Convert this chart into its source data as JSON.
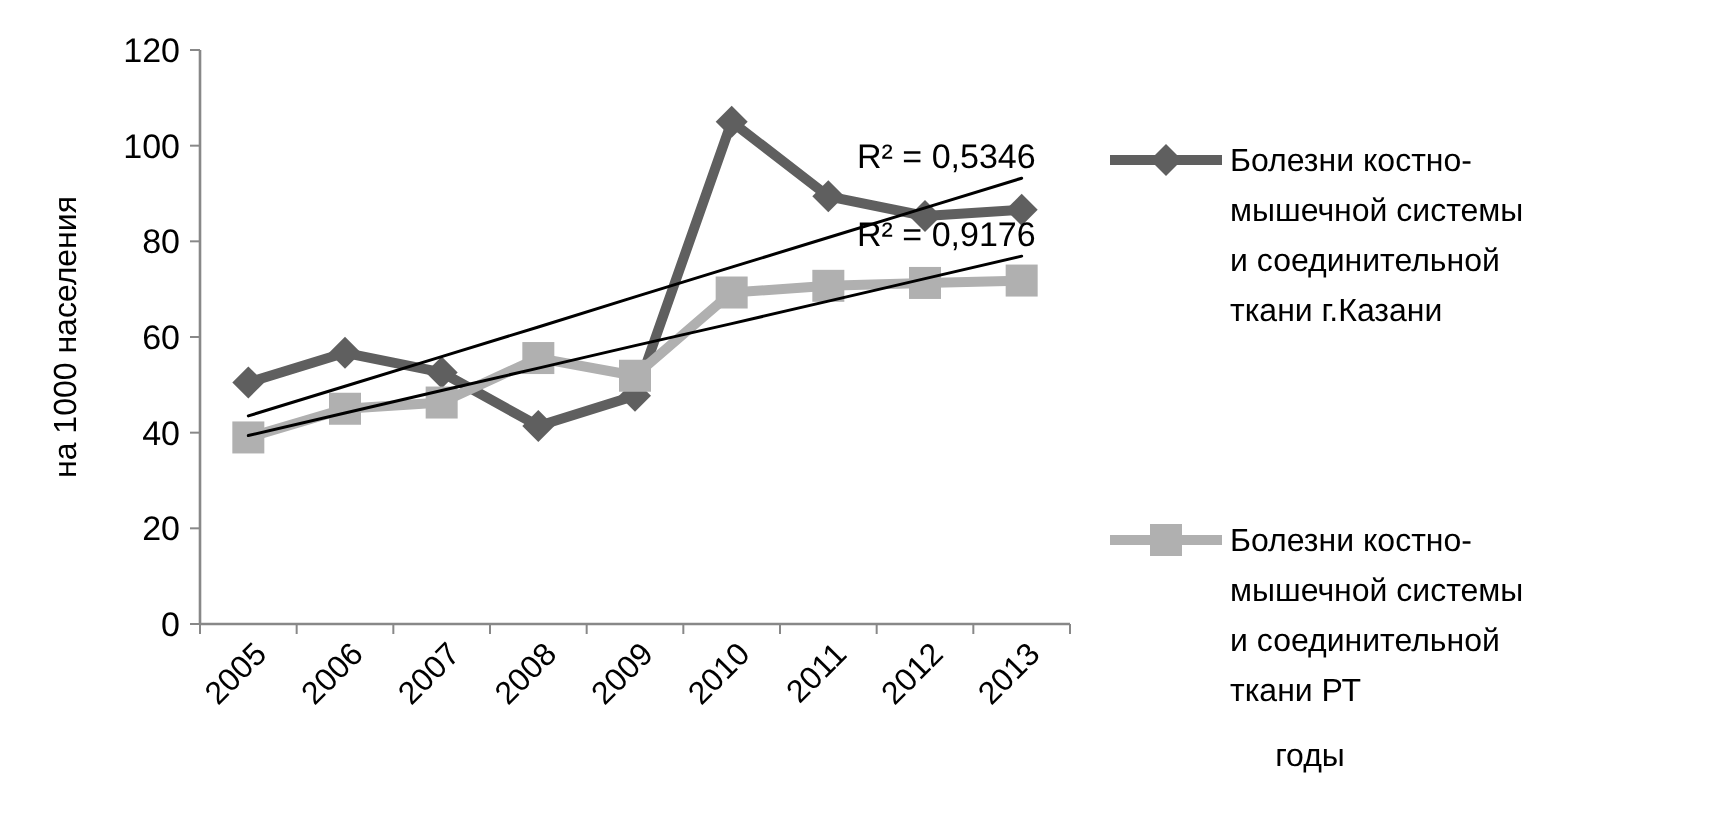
{
  "chart_data": {
    "type": "line",
    "ylabel": "на 1000 населения",
    "categories": [
      "2005",
      "2006",
      "2007",
      "2008",
      "2009",
      "2010",
      "2011",
      "2012",
      "2013"
    ],
    "ylim": [
      0,
      120
    ],
    "yticks": [
      0,
      20,
      40,
      60,
      80,
      100,
      120
    ],
    "legend": "right",
    "series": [
      {
        "name": "Болезни костно-мышечной системы и соединительной ткани г.Казани",
        "color": "#5f5f5f",
        "marker": "diamond",
        "values": [
          50.5,
          56.7,
          52.6,
          41.4,
          47.7,
          105,
          89.4,
          85.3,
          86.6
        ]
      },
      {
        "name": "Болезни костно-мышечной системы и соединительной ткани РТ",
        "color": "#b0b0b0",
        "marker": "square",
        "values": [
          39,
          45,
          46.3,
          55.6,
          51.9,
          69.3,
          70.7,
          71.3,
          71.8
        ]
      },
      {
        "type": "line",
        "color": "#000000",
        "marker": "none",
        "values": [
          43.5,
          49.7,
          55.9,
          62.1,
          68.4,
          74.6,
          80.8,
          87.0,
          93.2
        ]
      },
      {
        "type": "line",
        "color": "#000000",
        "marker": "none",
        "values": [
          39.4,
          44.1,
          48.8,
          53.5,
          58.2,
          62.8,
          67.5,
          72.2,
          76.9
        ]
      }
    ],
    "annotations": [
      {
        "text": "R² = 0,5346",
        "x": "2013",
        "y": 93.2
      },
      {
        "text": "R² = 0,9176",
        "x": "2013",
        "y": 76.9
      },
      "годы"
    ]
  }
}
